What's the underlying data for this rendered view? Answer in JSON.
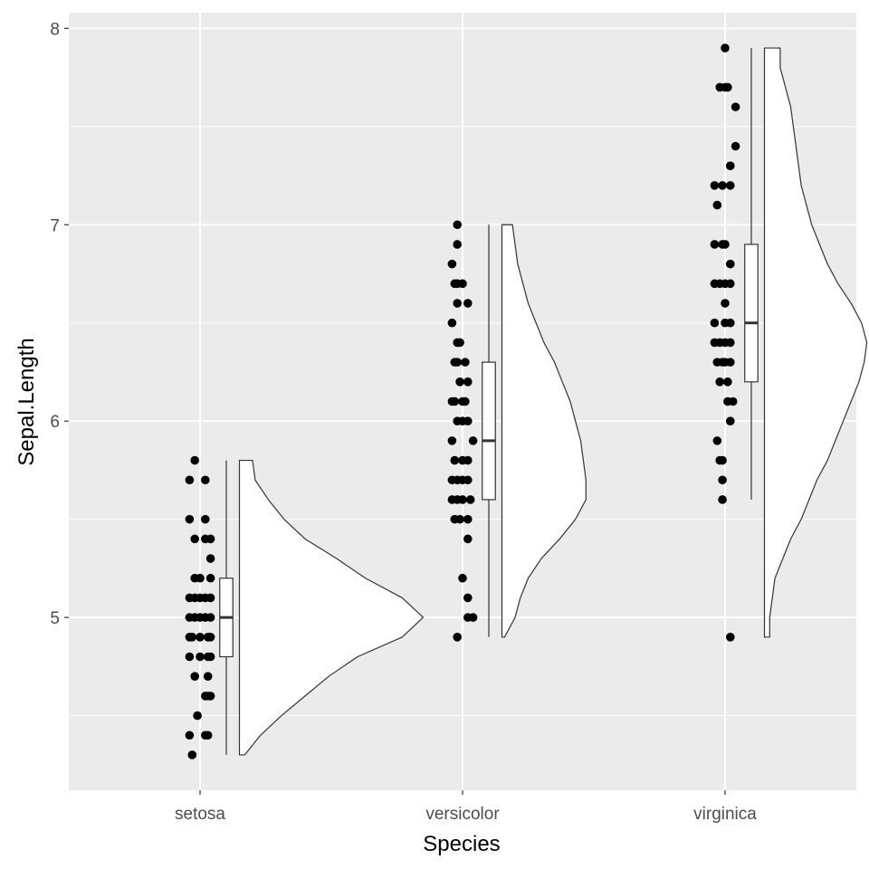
{
  "chart_data": {
    "type": "raincloud",
    "title": "",
    "xlabel": "Species",
    "ylabel": "Sepal.Length",
    "categories": [
      "setosa",
      "versicolor",
      "virginica"
    ],
    "ylim": [
      4.12,
      8.08
    ],
    "yticks": [
      5,
      6,
      7,
      8
    ],
    "yticks_minor": [
      4.5,
      5.5,
      6.5,
      7.5
    ],
    "grid": true,
    "colors": {
      "panel": "#ebebeb",
      "grid": "#ffffff",
      "point": "#000000",
      "outline": "#333333",
      "fill": "#ffffff",
      "tick_text": "#4d4d4d"
    },
    "groups": [
      {
        "name": "setosa",
        "points": [
          {
            "x": -0.02,
            "y": 5.8
          },
          {
            "x": -0.04,
            "y": 5.7
          },
          {
            "x": 0.02,
            "y": 5.7
          },
          {
            "x": -0.04,
            "y": 5.5
          },
          {
            "x": 0.02,
            "y": 5.5
          },
          {
            "x": -0.02,
            "y": 5.4
          },
          {
            "x": 0.02,
            "y": 5.4
          },
          {
            "x": 0.04,
            "y": 5.4
          },
          {
            "x": 0.04,
            "y": 5.3
          },
          {
            "x": -0.02,
            "y": 5.2
          },
          {
            "x": 0.0,
            "y": 5.2
          },
          {
            "x": 0.04,
            "y": 5.2
          },
          {
            "x": -0.04,
            "y": 5.1
          },
          {
            "x": -0.02,
            "y": 5.1
          },
          {
            "x": 0.0,
            "y": 5.1
          },
          {
            "x": 0.02,
            "y": 5.1
          },
          {
            "x": 0.04,
            "y": 5.1
          },
          {
            "x": -0.04,
            "y": 5.0
          },
          {
            "x": -0.02,
            "y": 5.0
          },
          {
            "x": 0.0,
            "y": 5.0
          },
          {
            "x": 0.02,
            "y": 5.0
          },
          {
            "x": 0.04,
            "y": 5.0
          },
          {
            "x": -0.04,
            "y": 4.9
          },
          {
            "x": -0.03,
            "y": 4.9
          },
          {
            "x": 0.0,
            "y": 4.9
          },
          {
            "x": 0.03,
            "y": 4.9
          },
          {
            "x": 0.04,
            "y": 4.9
          },
          {
            "x": -0.04,
            "y": 4.8
          },
          {
            "x": 0.0,
            "y": 4.8
          },
          {
            "x": 0.03,
            "y": 4.8
          },
          {
            "x": 0.04,
            "y": 4.8
          },
          {
            "x": -0.02,
            "y": 4.7
          },
          {
            "x": 0.03,
            "y": 4.7
          },
          {
            "x": 0.02,
            "y": 4.6
          },
          {
            "x": 0.03,
            "y": 4.6
          },
          {
            "x": 0.04,
            "y": 4.6
          },
          {
            "x": -0.01,
            "y": 4.5
          },
          {
            "x": -0.04,
            "y": 4.4
          },
          {
            "x": 0.02,
            "y": 4.4
          },
          {
            "x": 0.03,
            "y": 4.4
          },
          {
            "x": -0.03,
            "y": 4.3
          }
        ],
        "box": {
          "whisker_low": 4.3,
          "q1": 4.8,
          "median": 5.0,
          "q3": 5.2,
          "whisker_high": 5.8
        },
        "density": [
          [
            4.3,
            0.02
          ],
          [
            4.4,
            0.08
          ],
          [
            4.5,
            0.16
          ],
          [
            4.6,
            0.25
          ],
          [
            4.7,
            0.34
          ],
          [
            4.8,
            0.45
          ],
          [
            4.9,
            0.62
          ],
          [
            5.0,
            0.7
          ],
          [
            5.1,
            0.62
          ],
          [
            5.2,
            0.48
          ],
          [
            5.3,
            0.37
          ],
          [
            5.4,
            0.25
          ],
          [
            5.5,
            0.17
          ],
          [
            5.6,
            0.11
          ],
          [
            5.7,
            0.06
          ],
          [
            5.8,
            0.05
          ]
        ]
      },
      {
        "name": "versicolor",
        "points": [
          {
            "x": -0.02,
            "y": 7.0
          },
          {
            "x": -0.02,
            "y": 6.9
          },
          {
            "x": -0.04,
            "y": 6.8
          },
          {
            "x": -0.03,
            "y": 6.7
          },
          {
            "x": -0.02,
            "y": 6.7
          },
          {
            "x": 0.0,
            "y": 6.7
          },
          {
            "x": -0.02,
            "y": 6.6
          },
          {
            "x": 0.02,
            "y": 6.6
          },
          {
            "x": -0.04,
            "y": 6.5
          },
          {
            "x": -0.02,
            "y": 6.4
          },
          {
            "x": -0.01,
            "y": 6.4
          },
          {
            "x": -0.03,
            "y": 6.3
          },
          {
            "x": -0.02,
            "y": 6.3
          },
          {
            "x": 0.01,
            "y": 6.3
          },
          {
            "x": -0.01,
            "y": 6.2
          },
          {
            "x": 0.02,
            "y": 6.2
          },
          {
            "x": -0.04,
            "y": 6.1
          },
          {
            "x": -0.03,
            "y": 6.1
          },
          {
            "x": 0.0,
            "y": 6.1
          },
          {
            "x": 0.01,
            "y": 6.1
          },
          {
            "x": -0.02,
            "y": 6.0
          },
          {
            "x": 0.0,
            "y": 6.0
          },
          {
            "x": 0.02,
            "y": 6.0
          },
          {
            "x": -0.04,
            "y": 5.9
          },
          {
            "x": 0.04,
            "y": 5.9
          },
          {
            "x": -0.03,
            "y": 5.8
          },
          {
            "x": 0.0,
            "y": 5.8
          },
          {
            "x": 0.02,
            "y": 5.8
          },
          {
            "x": -0.04,
            "y": 5.7
          },
          {
            "x": -0.02,
            "y": 5.7
          },
          {
            "x": 0.0,
            "y": 5.7
          },
          {
            "x": 0.02,
            "y": 5.7
          },
          {
            "x": -0.04,
            "y": 5.6
          },
          {
            "x": -0.02,
            "y": 5.6
          },
          {
            "x": 0.0,
            "y": 5.6
          },
          {
            "x": 0.03,
            "y": 5.6
          },
          {
            "x": -0.03,
            "y": 5.5
          },
          {
            "x": -0.01,
            "y": 5.5
          },
          {
            "x": 0.02,
            "y": 5.5
          },
          {
            "x": 0.02,
            "y": 5.4
          },
          {
            "x": 0.0,
            "y": 5.2
          },
          {
            "x": 0.02,
            "y": 5.1
          },
          {
            "x": 0.02,
            "y": 5.0
          },
          {
            "x": 0.04,
            "y": 5.0
          },
          {
            "x": -0.02,
            "y": 4.9
          }
        ],
        "box": {
          "whisker_low": 4.9,
          "q1": 5.6,
          "median": 5.9,
          "q3": 6.3,
          "whisker_high": 7.0
        },
        "density": [
          [
            4.9,
            0.01
          ],
          [
            5.0,
            0.05
          ],
          [
            5.1,
            0.07
          ],
          [
            5.2,
            0.1
          ],
          [
            5.3,
            0.15
          ],
          [
            5.4,
            0.22
          ],
          [
            5.5,
            0.28
          ],
          [
            5.6,
            0.32
          ],
          [
            5.7,
            0.32
          ],
          [
            5.8,
            0.31
          ],
          [
            5.9,
            0.3
          ],
          [
            6.0,
            0.28
          ],
          [
            6.1,
            0.26
          ],
          [
            6.2,
            0.23
          ],
          [
            6.3,
            0.2
          ],
          [
            6.4,
            0.16
          ],
          [
            6.5,
            0.13
          ],
          [
            6.6,
            0.1
          ],
          [
            6.7,
            0.08
          ],
          [
            6.8,
            0.06
          ],
          [
            6.9,
            0.05
          ],
          [
            7.0,
            0.04
          ]
        ]
      },
      {
        "name": "virginica",
        "points": [
          {
            "x": 0.0,
            "y": 7.9
          },
          {
            "x": -0.02,
            "y": 7.7
          },
          {
            "x": 0.0,
            "y": 7.7
          },
          {
            "x": 0.01,
            "y": 7.7
          },
          {
            "x": 0.04,
            "y": 7.6
          },
          {
            "x": 0.04,
            "y": 7.4
          },
          {
            "x": 0.02,
            "y": 7.3
          },
          {
            "x": -0.04,
            "y": 7.2
          },
          {
            "x": -0.01,
            "y": 7.2
          },
          {
            "x": 0.02,
            "y": 7.2
          },
          {
            "x": -0.03,
            "y": 7.1
          },
          {
            "x": -0.04,
            "y": 6.9
          },
          {
            "x": -0.01,
            "y": 6.9
          },
          {
            "x": 0.0,
            "y": 6.9
          },
          {
            "x": 0.02,
            "y": 6.8
          },
          {
            "x": -0.04,
            "y": 6.7
          },
          {
            "x": -0.02,
            "y": 6.7
          },
          {
            "x": 0.0,
            "y": 6.7
          },
          {
            "x": 0.02,
            "y": 6.7
          },
          {
            "x": 0.0,
            "y": 6.6
          },
          {
            "x": -0.04,
            "y": 6.5
          },
          {
            "x": 0.0,
            "y": 6.5
          },
          {
            "x": 0.02,
            "y": 6.5
          },
          {
            "x": -0.04,
            "y": 6.4
          },
          {
            "x": -0.02,
            "y": 6.4
          },
          {
            "x": 0.0,
            "y": 6.4
          },
          {
            "x": 0.02,
            "y": 6.4
          },
          {
            "x": -0.03,
            "y": 6.3
          },
          {
            "x": -0.01,
            "y": 6.3
          },
          {
            "x": 0.0,
            "y": 6.3
          },
          {
            "x": 0.02,
            "y": 6.3
          },
          {
            "x": -0.02,
            "y": 6.2
          },
          {
            "x": 0.01,
            "y": 6.2
          },
          {
            "x": 0.01,
            "y": 6.1
          },
          {
            "x": 0.03,
            "y": 6.1
          },
          {
            "x": 0.02,
            "y": 6.0
          },
          {
            "x": -0.03,
            "y": 5.9
          },
          {
            "x": -0.02,
            "y": 5.8
          },
          {
            "x": -0.01,
            "y": 5.8
          },
          {
            "x": -0.01,
            "y": 5.7
          },
          {
            "x": -0.01,
            "y": 5.6
          },
          {
            "x": 0.02,
            "y": 4.9
          }
        ],
        "box": {
          "whisker_low": 5.6,
          "q1": 6.2,
          "median": 6.5,
          "q3": 6.9,
          "whisker_high": 7.9
        },
        "density": [
          [
            4.9,
            0.02
          ],
          [
            5.0,
            0.02
          ],
          [
            5.1,
            0.03
          ],
          [
            5.2,
            0.04
          ],
          [
            5.3,
            0.07
          ],
          [
            5.4,
            0.1
          ],
          [
            5.5,
            0.14
          ],
          [
            5.6,
            0.17
          ],
          [
            5.7,
            0.2
          ],
          [
            5.8,
            0.24
          ],
          [
            5.9,
            0.27
          ],
          [
            6.0,
            0.3
          ],
          [
            6.1,
            0.33
          ],
          [
            6.2,
            0.36
          ],
          [
            6.3,
            0.38
          ],
          [
            6.4,
            0.39
          ],
          [
            6.5,
            0.37
          ],
          [
            6.6,
            0.33
          ],
          [
            6.7,
            0.28
          ],
          [
            6.8,
            0.24
          ],
          [
            6.9,
            0.21
          ],
          [
            7.0,
            0.18
          ],
          [
            7.1,
            0.16
          ],
          [
            7.2,
            0.14
          ],
          [
            7.3,
            0.13
          ],
          [
            7.4,
            0.12
          ],
          [
            7.5,
            0.11
          ],
          [
            7.6,
            0.1
          ],
          [
            7.7,
            0.08
          ],
          [
            7.8,
            0.06
          ],
          [
            7.9,
            0.06
          ]
        ]
      }
    ]
  }
}
